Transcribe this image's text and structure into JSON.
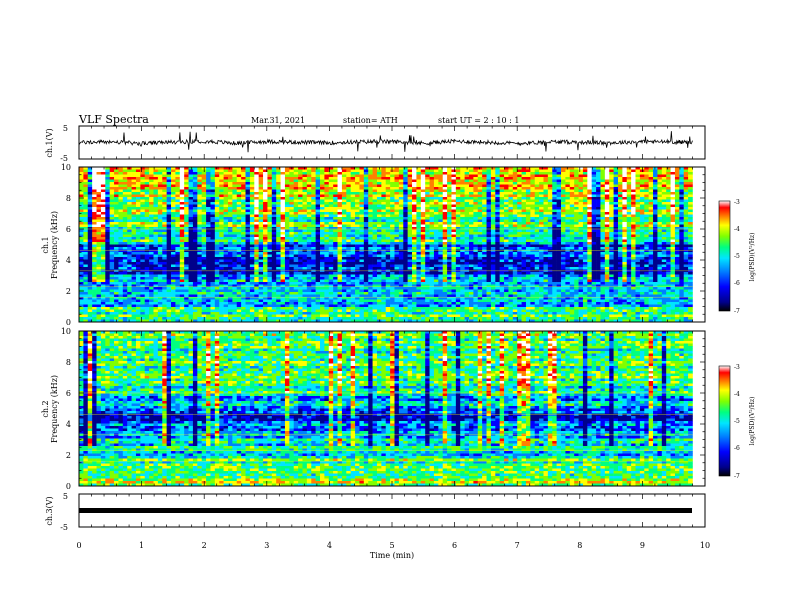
{
  "header": {
    "title": "VLF Spectra",
    "date": "Mar.31, 2021",
    "station": "station= ATH",
    "start_time": "start UT = 2 : 10 : 1"
  },
  "panels": {
    "ch1_wave": {
      "ylabel": "ch.1(V)",
      "yticks": [
        "5",
        "-5"
      ]
    },
    "ch1_spec": {
      "ylabel_top": "ch.1",
      "ylabel": "Frequency (kHz)",
      "yticks": [
        "0",
        "2",
        "4",
        "6",
        "8",
        "10"
      ]
    },
    "ch2_spec": {
      "ylabel_top": "ch.2",
      "ylabel": "Frequency (kHz)",
      "yticks": [
        "0",
        "2",
        "4",
        "6",
        "8",
        "10"
      ]
    },
    "ch3_wave": {
      "ylabel": "ch.3(V)",
      "yticks": [
        "5",
        "-5"
      ]
    }
  },
  "xaxis": {
    "label": "Time (min)",
    "ticks": [
      "0",
      "1",
      "2",
      "3",
      "4",
      "5",
      "6",
      "7",
      "8",
      "9",
      "10"
    ]
  },
  "colorbar": {
    "label": "log(PSD)(V²/Hz)",
    "ticks": [
      "-3",
      "-4",
      "-5",
      "-6",
      "-7"
    ],
    "colors": [
      "#00008b",
      "#0000ff",
      "#0080ff",
      "#00e5ff",
      "#00ff80",
      "#80ff00",
      "#ffff00",
      "#ff8000",
      "#ff0000",
      "#ffffff"
    ]
  },
  "chart_data": [
    {
      "type": "line",
      "name": "ch.1 waveform",
      "xlabel": "Time (min)",
      "ylabel": "ch.1(V)",
      "xlim": [
        0,
        10
      ],
      "ylim": [
        -5,
        5
      ],
      "x": [
        0,
        0.5,
        1,
        1.5,
        2,
        2.5,
        3,
        3.5,
        4,
        4.5,
        5,
        5.5,
        6,
        6.5,
        7,
        7.5,
        8,
        8.5,
        9,
        9.5,
        9.8
      ],
      "y": [
        0,
        0.2,
        -0.3,
        0.1,
        0.4,
        -0.2,
        0.3,
        0.1,
        -0.1,
        0.2,
        0.3,
        -0.2,
        0.4,
        0.1,
        -0.3,
        0.2,
        0.1,
        -0.1,
        0.3,
        0.2,
        0.1
      ]
    },
    {
      "type": "heatmap",
      "name": "ch.1 spectrogram",
      "xlabel": "Time (min)",
      "ylabel": "Frequency (kHz)",
      "xlim": [
        0,
        10
      ],
      "ylim": [
        0,
        10
      ],
      "zlabel": "log(PSD)(V²/Hz)",
      "zlim": [
        -7,
        -3
      ],
      "data_extent_x": [
        0,
        9.8
      ],
      "frequency_bands_khz": [
        0,
        1,
        2,
        3,
        4,
        5,
        6,
        7,
        8,
        9,
        10
      ],
      "band_mean_log_psd": [
        -5.0,
        -5.8,
        -5.6,
        -6.6,
        -6.2,
        -5.4,
        -5.0,
        -4.7,
        -4.5,
        -4.4
      ]
    },
    {
      "type": "heatmap",
      "name": "ch.2 spectrogram",
      "xlabel": "Time (min)",
      "ylabel": "Frequency (kHz)",
      "xlim": [
        0,
        10
      ],
      "ylim": [
        0,
        10
      ],
      "zlabel": "log(PSD)(V²/Hz)",
      "zlim": [
        -7,
        -3
      ],
      "data_extent_x": [
        0,
        9.8
      ],
      "frequency_bands_khz": [
        0,
        1,
        2,
        3,
        4,
        5,
        6,
        7,
        8,
        9,
        10
      ],
      "band_mean_log_psd": [
        -4.8,
        -5.2,
        -5.5,
        -5.9,
        -6.3,
        -5.6,
        -5.3,
        -5.2,
        -5.1,
        -5.0
      ]
    },
    {
      "type": "line",
      "name": "ch.3 waveform",
      "xlabel": "Time (min)",
      "ylabel": "ch.3(V)",
      "xlim": [
        0,
        10
      ],
      "ylim": [
        -5,
        5
      ],
      "x": [
        0,
        9.8
      ],
      "y": [
        0,
        0
      ]
    }
  ]
}
